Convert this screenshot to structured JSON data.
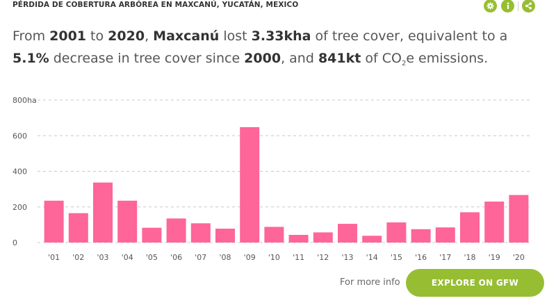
{
  "widget": {
    "title": "PÉRDIDA DE COBERTURA ARBÓREA EN MAXCANÚ, YUCATÁN, MEXICO",
    "accent_color": "#97be32",
    "tools": [
      {
        "icon": "gear-icon"
      },
      {
        "icon": "info-icon"
      },
      {
        "icon": "share-icon"
      }
    ]
  },
  "summary": {
    "t1": "From ",
    "year_start": "2001",
    "t2": " to ",
    "year_end": "2020",
    "t3": ", ",
    "location": "Maxcanú",
    "t4": " lost ",
    "loss": "3.33kha",
    "t5": " of tree cover, equivalent to a ",
    "percent": "5.1%",
    "t6": " decrease in tree cover since ",
    "base_year": "2000",
    "t7": ", and ",
    "emissions": "841kt",
    "t8": " of CO",
    "t8_sub": "2",
    "t9": "e emissions."
  },
  "chart_data": {
    "type": "bar",
    "categories": [
      "'01",
      "'02",
      "'03",
      "'04",
      "'05",
      "'06",
      "'07",
      "'08",
      "'09",
      "'10",
      "'11",
      "'12",
      "'13",
      "'14",
      "'15",
      "'16",
      "'17",
      "'18",
      "'19",
      "'20"
    ],
    "series": [
      {
        "values": [
          235,
          165,
          337,
          235,
          83,
          135,
          108,
          78,
          648,
          88,
          43,
          57,
          105,
          38,
          113,
          75,
          85,
          170,
          230,
          267
        ]
      }
    ],
    "y_ticks": [
      {
        "value": 800,
        "label": "800ha"
      },
      {
        "value": 600,
        "label": "600"
      },
      {
        "value": 400,
        "label": "400"
      },
      {
        "value": 200,
        "label": "200"
      },
      {
        "value": 0,
        "label": "0"
      }
    ],
    "ylim": [
      0,
      800
    ],
    "bar_color": "#fe6598",
    "grid": true
  },
  "footer": {
    "more_info": "For more info",
    "button": "EXPLORE ON GFW"
  }
}
